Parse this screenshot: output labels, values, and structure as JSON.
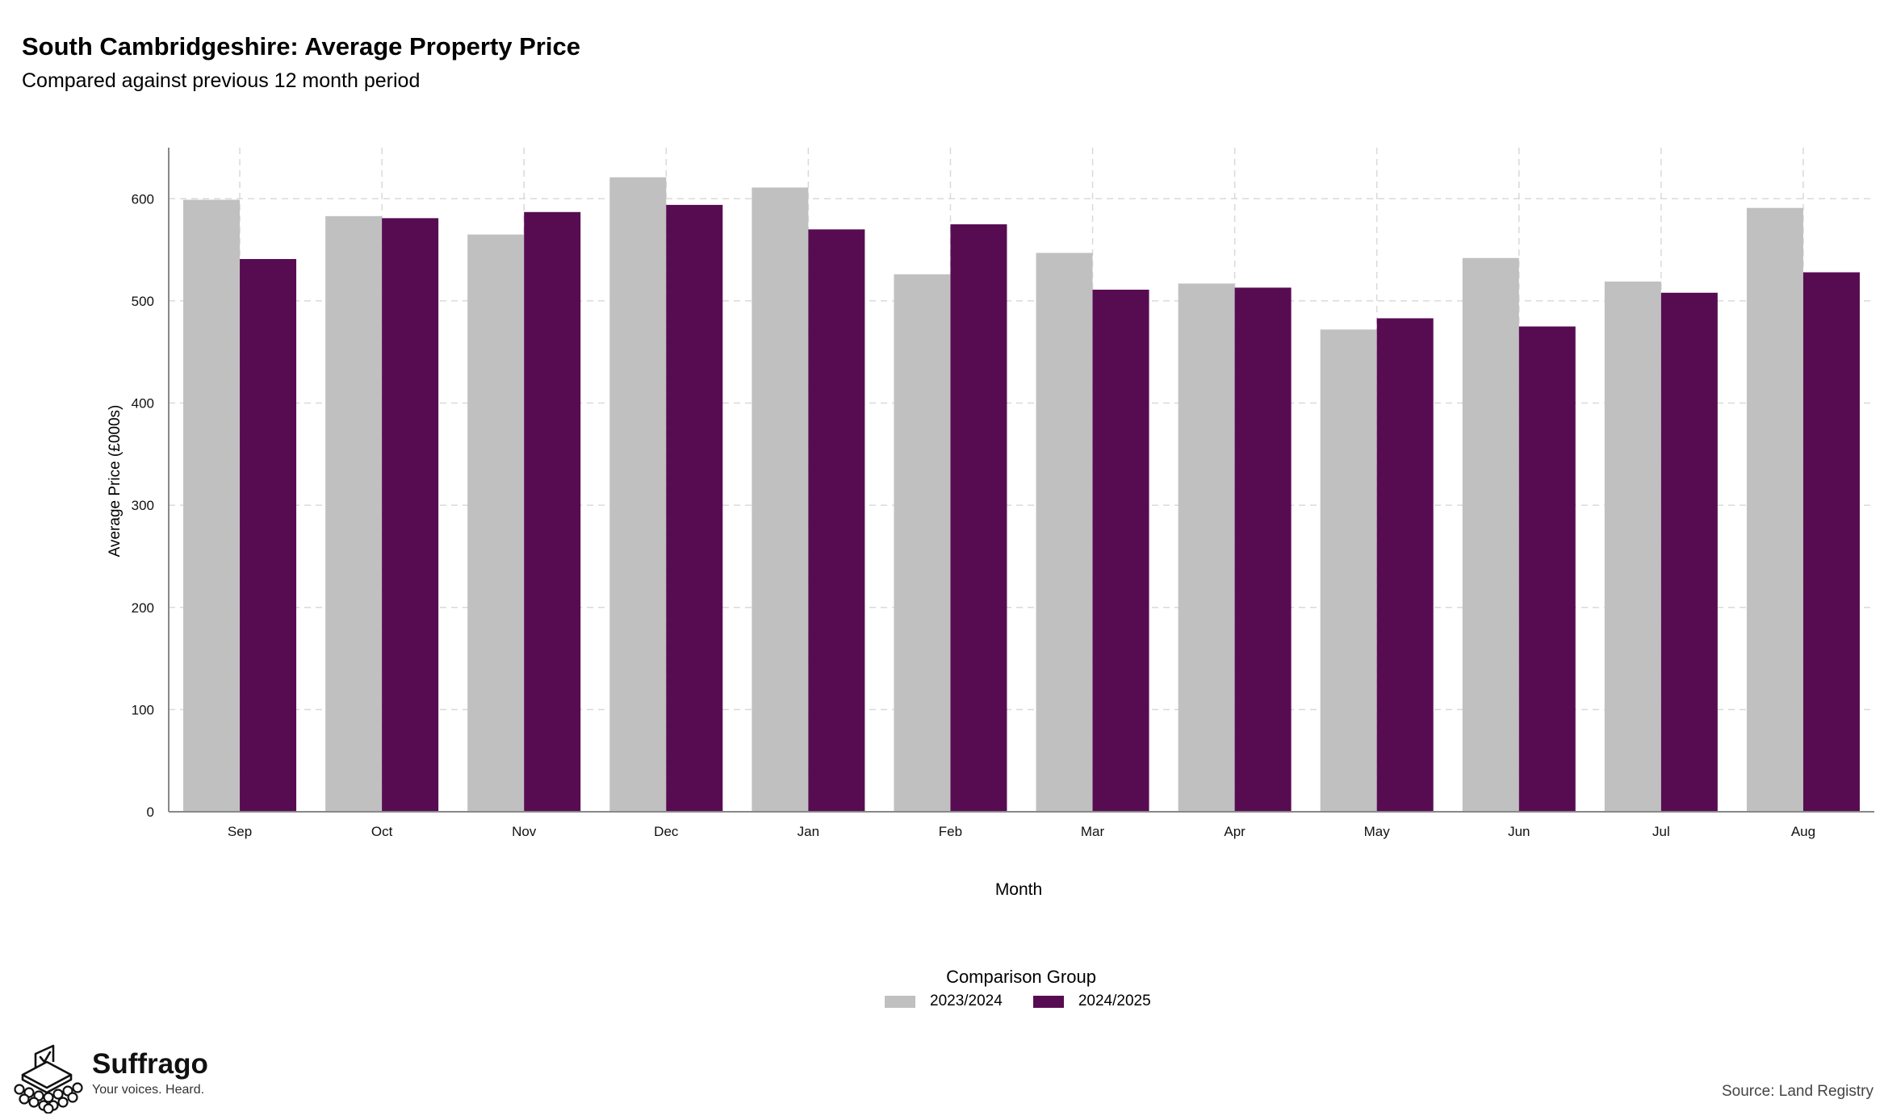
{
  "title": "South Cambridgeshire: Average Property Price",
  "subtitle": "Compared against previous 12 month period",
  "legend": {
    "title": "Comparison Group",
    "items": [
      {
        "label": "2023/2024",
        "color": "#c0c0c0"
      },
      {
        "label": "2024/2025",
        "color": "#570c52"
      }
    ]
  },
  "logo": {
    "name": "Suffrago",
    "tagline": "Your voices. Heard."
  },
  "source": "Source: Land Registry",
  "chart_data": {
    "type": "bar",
    "title": "South Cambridgeshire: Average Property Price",
    "subtitle": "Compared against previous 12 month period",
    "xlabel": "Month",
    "ylabel": "Average Price (£000s)",
    "ylim": [
      0,
      650
    ],
    "yticks": [
      0,
      100,
      200,
      300,
      400,
      500,
      600
    ],
    "grid": true,
    "legend_position": "bottom",
    "categories": [
      "Sep",
      "Oct",
      "Nov",
      "Dec",
      "Jan",
      "Feb",
      "Mar",
      "Apr",
      "May",
      "Jun",
      "Jul",
      "Aug"
    ],
    "series": [
      {
        "name": "2023/2024",
        "color": "#c0c0c0",
        "values": [
          599,
          583,
          565,
          621,
          611,
          526,
          547,
          517,
          472,
          542,
          519,
          591
        ]
      },
      {
        "name": "2024/2025",
        "color": "#570c52",
        "values": [
          541,
          581,
          587,
          594,
          570,
          575,
          511,
          513,
          483,
          475,
          508,
          528
        ]
      }
    ]
  }
}
